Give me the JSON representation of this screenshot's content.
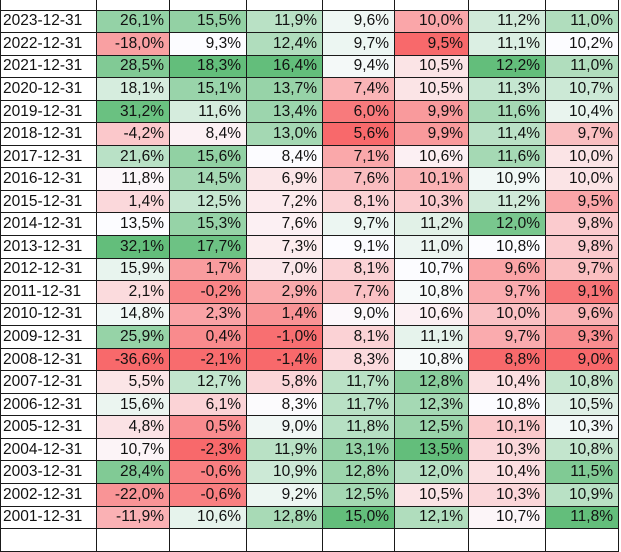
{
  "header_cells": [
    "",
    "",
    "",
    "",
    "",
    "",
    "",
    ""
  ],
  "rows": [
    {
      "date": "2023-12-31",
      "values": [
        "26,1%",
        "15,5%",
        "11,9%",
        "9,6%",
        "10,0%",
        "11,2%",
        "11,0%"
      ]
    },
    {
      "date": "2022-12-31",
      "values": [
        "-18,0%",
        "9,3%",
        "12,4%",
        "9,7%",
        "9,5%",
        "11,1%",
        "10,2%"
      ]
    },
    {
      "date": "2021-12-31",
      "values": [
        "28,5%",
        "18,3%",
        "16,4%",
        "9,4%",
        "10,5%",
        "12,2%",
        "11,0%"
      ]
    },
    {
      "date": "2020-12-31",
      "values": [
        "18,1%",
        "15,1%",
        "13,7%",
        "7,4%",
        "10,5%",
        "11,3%",
        "10,7%"
      ]
    },
    {
      "date": "2019-12-31",
      "values": [
        "31,2%",
        "11,6%",
        "13,4%",
        "6,0%",
        "9,9%",
        "11,6%",
        "10,4%"
      ]
    },
    {
      "date": "2018-12-31",
      "values": [
        "-4,2%",
        "8,4%",
        "13,0%",
        "5,6%",
        "9,9%",
        "11,4%",
        "9,7%"
      ]
    },
    {
      "date": "2017-12-31",
      "values": [
        "21,6%",
        "15,6%",
        "8,4%",
        "7,1%",
        "10,6%",
        "11,6%",
        "10,0%"
      ]
    },
    {
      "date": "2016-12-31",
      "values": [
        "11,8%",
        "14,5%",
        "6,9%",
        "7,6%",
        "10,1%",
        "10,9%",
        "10,0%"
      ]
    },
    {
      "date": "2015-12-31",
      "values": [
        "1,4%",
        "12,5%",
        "7,2%",
        "8,1%",
        "10,3%",
        "11,2%",
        "9,5%"
      ]
    },
    {
      "date": "2014-12-31",
      "values": [
        "13,5%",
        "15,3%",
        "7,6%",
        "9,7%",
        "11,2%",
        "12,0%",
        "9,8%"
      ]
    },
    {
      "date": "2013-12-31",
      "values": [
        "32,1%",
        "17,7%",
        "7,3%",
        "9,1%",
        "11,0%",
        "10,8%",
        "9,8%"
      ]
    },
    {
      "date": "2012-12-31",
      "values": [
        "15,9%",
        "1,7%",
        "7,0%",
        "8,1%",
        "10,7%",
        "9,6%",
        "9,7%"
      ]
    },
    {
      "date": "2011-12-31",
      "values": [
        "2,1%",
        "-0,2%",
        "2,9%",
        "7,7%",
        "10,8%",
        "9,7%",
        "9,1%"
      ]
    },
    {
      "date": "2010-12-31",
      "values": [
        "14,8%",
        "2,3%",
        "1,4%",
        "9,0%",
        "10,6%",
        "10,0%",
        "9,6%"
      ]
    },
    {
      "date": "2009-12-31",
      "values": [
        "25,9%",
        "0,4%",
        "-1,0%",
        "8,1%",
        "11,1%",
        "9,7%",
        "9,3%"
      ]
    },
    {
      "date": "2008-12-31",
      "values": [
        "-36,6%",
        "-2,1%",
        "-1,4%",
        "8,3%",
        "10,8%",
        "8,8%",
        "9,0%"
      ]
    },
    {
      "date": "2007-12-31",
      "values": [
        "5,5%",
        "12,7%",
        "5,8%",
        "11,7%",
        "12,8%",
        "10,4%",
        "10,8%"
      ]
    },
    {
      "date": "2006-12-31",
      "values": [
        "15,6%",
        "6,1%",
        "8,3%",
        "11,7%",
        "12,3%",
        "10,8%",
        "10,5%"
      ]
    },
    {
      "date": "2005-12-31",
      "values": [
        "4,8%",
        "0,5%",
        "9,0%",
        "11,8%",
        "12,5%",
        "10,1%",
        "10,3%"
      ]
    },
    {
      "date": "2004-12-31",
      "values": [
        "10,7%",
        "-2,3%",
        "11,9%",
        "13,1%",
        "13,5%",
        "10,3%",
        "10,8%"
      ]
    },
    {
      "date": "2003-12-31",
      "values": [
        "28,4%",
        "-0,6%",
        "10,9%",
        "12,8%",
        "12,0%",
        "10,4%",
        "11,5%"
      ]
    },
    {
      "date": "2002-12-31",
      "values": [
        "-22,0%",
        "-0,6%",
        "9,2%",
        "12,5%",
        "10,5%",
        "10,3%",
        "10,9%"
      ]
    },
    {
      "date": "2001-12-31",
      "values": [
        "-11,9%",
        "10,6%",
        "12,8%",
        "15,0%",
        "12,1%",
        "10,7%",
        "11,8%"
      ]
    },
    {
      "date": "",
      "values": [
        "",
        "",
        "",
        "",
        "",
        "",
        ""
      ]
    }
  ],
  "colors": {
    "green_strong": "#63be7b",
    "red_strong": "#f8696b",
    "neutral": "#fcfcff",
    "border": "#1a1a1a",
    "date_bg": "#ffffff"
  }
}
